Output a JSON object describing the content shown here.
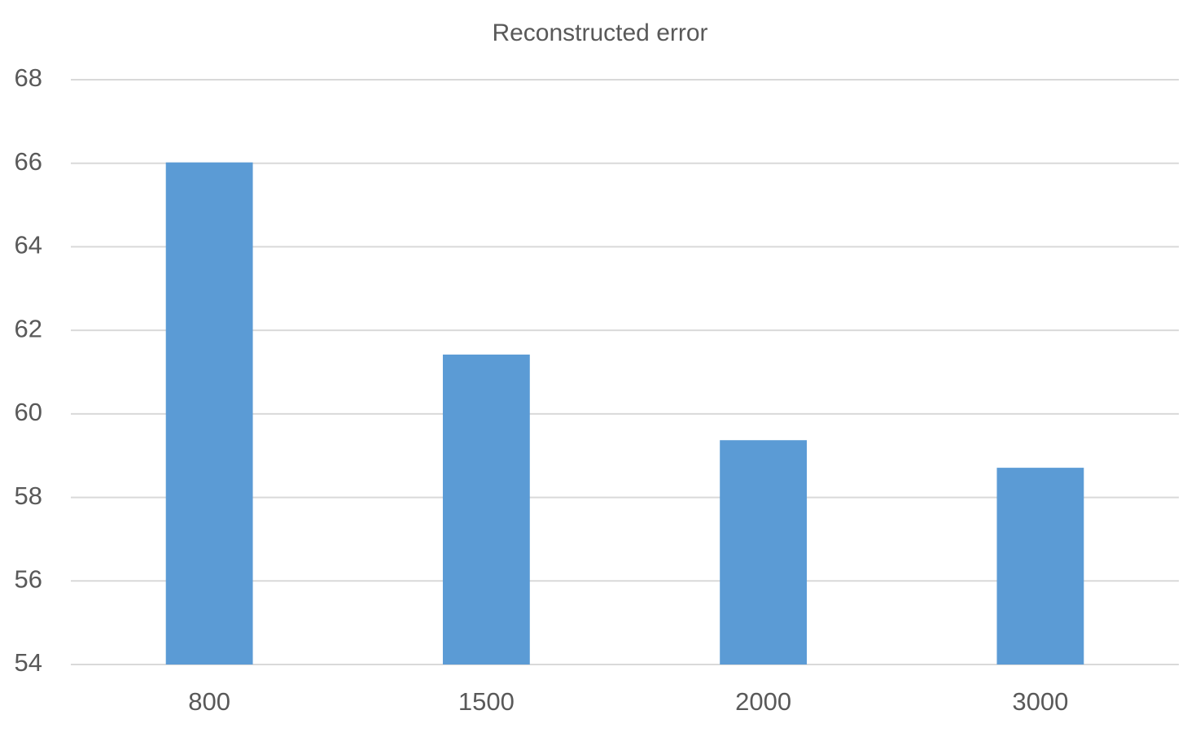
{
  "chart_data": {
    "type": "bar",
    "title": "Reconstructed error",
    "categories": [
      "800",
      "1500",
      "2000",
      "3000"
    ],
    "values": [
      66.02,
      61.42,
      59.37,
      58.71
    ],
    "color": "#5b9bd5",
    "ylim": [
      54,
      68
    ],
    "yticks": [
      54,
      56,
      58,
      60,
      62,
      64,
      66,
      68
    ],
    "grid": true
  }
}
